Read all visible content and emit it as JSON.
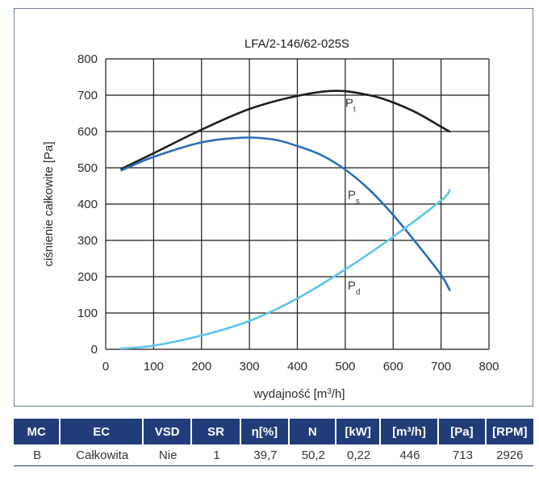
{
  "chart_data": {
    "type": "line",
    "title": "LFA/2-146/62-025S",
    "xlabel": "wydajność [m³/h]",
    "xlabel_prefix": "wydajność [m",
    "xlabel_sup": "3",
    "xlabel_suffix": "/h]",
    "ylabel": "ciśnienie całkowite [Pa]",
    "xlim": [
      0,
      800
    ],
    "ylim": [
      0,
      800
    ],
    "xticks": [
      0,
      100,
      200,
      300,
      400,
      500,
      600,
      700,
      800
    ],
    "yticks": [
      0,
      100,
      200,
      300,
      400,
      500,
      600,
      700,
      800
    ],
    "grid": true,
    "series": [
      {
        "name": "Pt",
        "label_main": "P",
        "label_sub": "t",
        "color": "#1e1e1e",
        "x": [
          33,
          100,
          200,
          300,
          400,
          480,
          550,
          600,
          650,
          700,
          718
        ],
        "y": [
          497,
          540,
          605,
          662,
          698,
          712,
          700,
          680,
          651,
          613,
          600
        ]
      },
      {
        "name": "Ps",
        "label_main": "P",
        "label_sub": "s",
        "color": "#2c6db6",
        "x": [
          33,
          100,
          200,
          285,
          350,
          400,
          450,
          500,
          550,
          600,
          650,
          700,
          718
        ],
        "y": [
          493,
          530,
          570,
          583,
          578,
          560,
          535,
          495,
          440,
          370,
          290,
          205,
          163
        ]
      },
      {
        "name": "Pd",
        "label_main": "P",
        "label_sub": "d",
        "color": "#5cc4ee",
        "x": [
          33,
          100,
          200,
          300,
          400,
          500,
          600,
          700,
          718
        ],
        "y": [
          2,
          10,
          38,
          78,
          140,
          220,
          310,
          410,
          438
        ]
      }
    ]
  },
  "table": {
    "headers": [
      "MC",
      "EC",
      "VSD",
      "SR",
      "η[%]",
      "N",
      "[kW]",
      "[m³/h]",
      "[Pa]",
      "[RPM]"
    ],
    "row": [
      "B",
      "Całkowita",
      "Nie",
      "1",
      "39,7",
      "50,2",
      "0,22",
      "446",
      "713",
      "2926"
    ]
  }
}
